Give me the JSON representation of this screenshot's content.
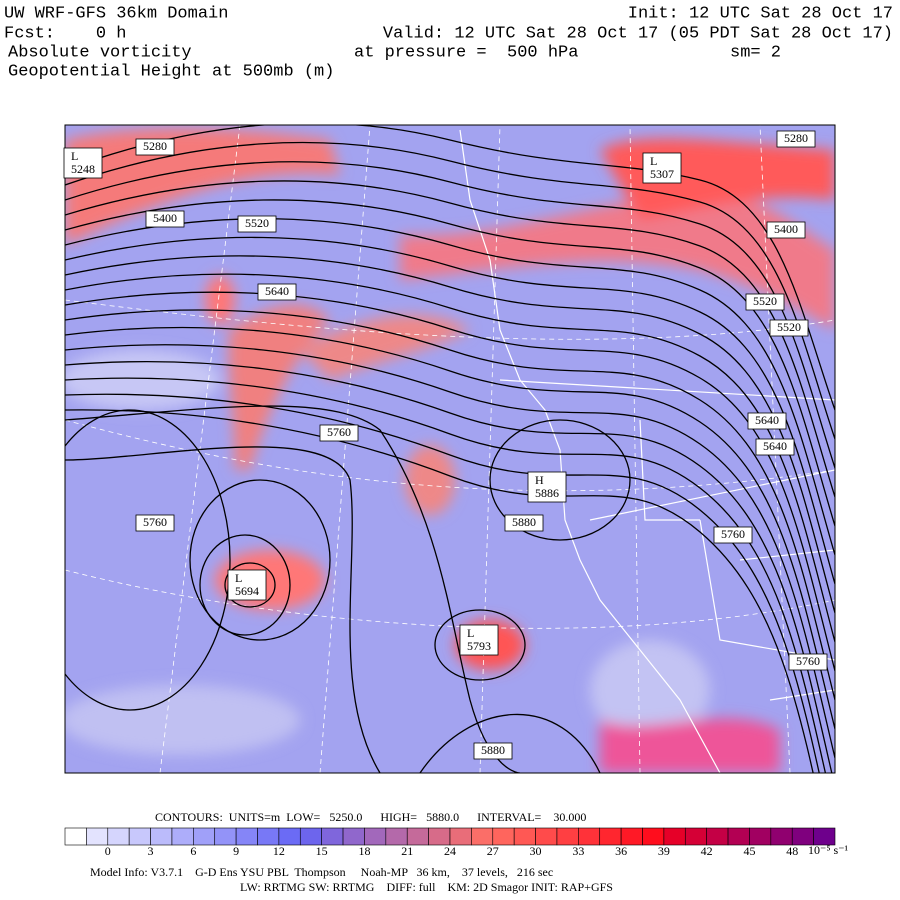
{
  "header": {
    "title": "UW WRF-GFS 36km Domain",
    "fcst": "Fcst:    0 h",
    "field1": "Absolute vorticity",
    "field2": "Geopotential Height at 500mb (m)",
    "init": "Init: 12 UTC Sat 28 Oct 17",
    "valid": "Valid: 12 UTC Sat 28 Oct 17 (05 PDT Sat 28 Oct 17)",
    "pressure": "at pressure =  500 hPa",
    "smoothing": "sm= 2"
  },
  "map": {
    "contour_labels": [
      "5280",
      "5400",
      "5520",
      "5640",
      "5760",
      "5760",
      "5880",
      "5880",
      "5280",
      "5400",
      "5520",
      "5520",
      "5640",
      "5640",
      "5760",
      "5760"
    ],
    "centers": [
      {
        "kind": "L",
        "value": "5248"
      },
      {
        "kind": "L",
        "value": "5307"
      },
      {
        "kind": "L",
        "value": "5694"
      },
      {
        "kind": "H",
        "value": "5886"
      },
      {
        "kind": "L",
        "value": "5793"
      }
    ]
  },
  "footer": {
    "contours": "CONTOURS:  UNITS=m  LOW=   5250.0      HIGH=   5880.0      INTERVAL=    30.000",
    "colorbar_ticks": [
      "0",
      "3",
      "6",
      "9",
      "12",
      "15",
      "18",
      "21",
      "24",
      "27",
      "30",
      "33",
      "36",
      "39",
      "42",
      "45",
      "48"
    ],
    "colorbar_unit": "10⁻⁵ s⁻¹",
    "model_info": "Model Info: V3.7.1    G-D Ens YSU PBL  Thompson     Noah-MP   36 km,    37 levels,   216 sec",
    "model_info2": "LW: RRTMG SW: RRTMG    DIFF: full    KM: 2D Smagor INIT: RAP+GFS"
  }
}
